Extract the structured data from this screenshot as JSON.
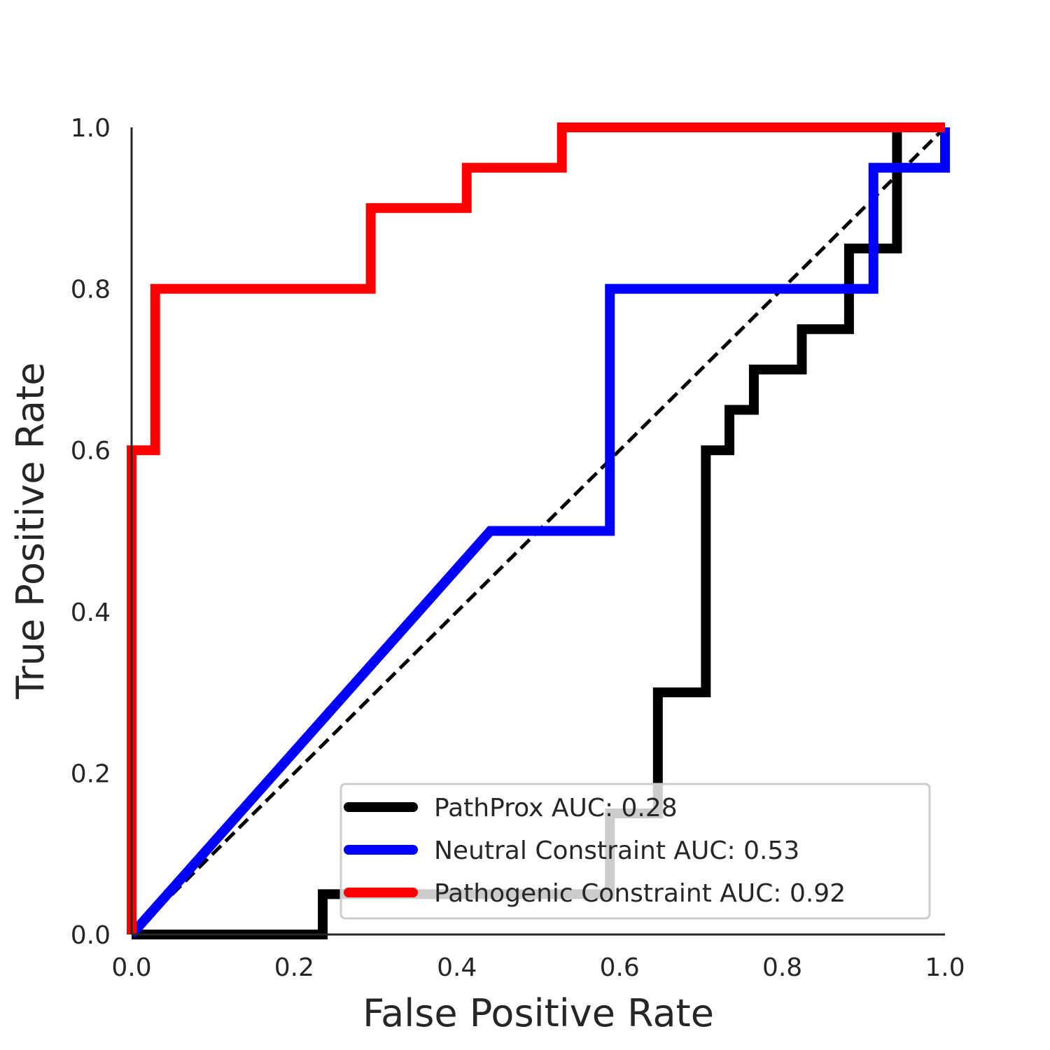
{
  "chart_data": {
    "type": "line",
    "title": "",
    "xlabel": "False Positive Rate",
    "ylabel": "True Positive Rate",
    "xlim": [
      0.0,
      1.0
    ],
    "ylim": [
      0.0,
      1.0
    ],
    "xticks": [
      "0.0",
      "0.2",
      "0.4",
      "0.6",
      "0.8",
      "1.0"
    ],
    "yticks": [
      "0.0",
      "0.2",
      "0.4",
      "0.6",
      "0.8",
      "1.0"
    ],
    "grid": false,
    "legend_position": "lower-right",
    "reference_line": {
      "style": "dashed",
      "color": "#000000",
      "x": [
        0.0,
        1.0
      ],
      "y": [
        0.0,
        1.0
      ]
    },
    "series": [
      {
        "name": "PathProx AUC:  0.28",
        "color": "#000000",
        "x": [
          0.0,
          0.235,
          0.235,
          0.588,
          0.588,
          0.647,
          0.647,
          0.706,
          0.706,
          0.735,
          0.735,
          0.765,
          0.765,
          0.824,
          0.824,
          0.882,
          0.882,
          0.941,
          0.941,
          1.0
        ],
        "y": [
          0.0,
          0.0,
          0.05,
          0.05,
          0.15,
          0.15,
          0.3,
          0.3,
          0.6,
          0.6,
          0.65,
          0.65,
          0.7,
          0.7,
          0.75,
          0.75,
          0.85,
          0.85,
          1.0,
          1.0
        ]
      },
      {
        "name": "Neutral Constraint AUC:  0.53",
        "color": "#0000ff",
        "x": [
          0.0,
          0.441,
          0.588,
          0.588,
          0.912,
          0.912,
          1.0,
          1.0
        ],
        "y": [
          0.0,
          0.5,
          0.5,
          0.8,
          0.8,
          0.95,
          0.95,
          1.0
        ]
      },
      {
        "name": "Pathogenic Constraint AUC:  0.92",
        "color": "#ff0000",
        "x": [
          0.0,
          0.0,
          0.029,
          0.029,
          0.294,
          0.294,
          0.412,
          0.412,
          0.529,
          0.529,
          1.0
        ],
        "y": [
          0.0,
          0.6,
          0.6,
          0.8,
          0.8,
          0.9,
          0.9,
          0.95,
          0.95,
          1.0,
          1.0
        ]
      }
    ]
  }
}
